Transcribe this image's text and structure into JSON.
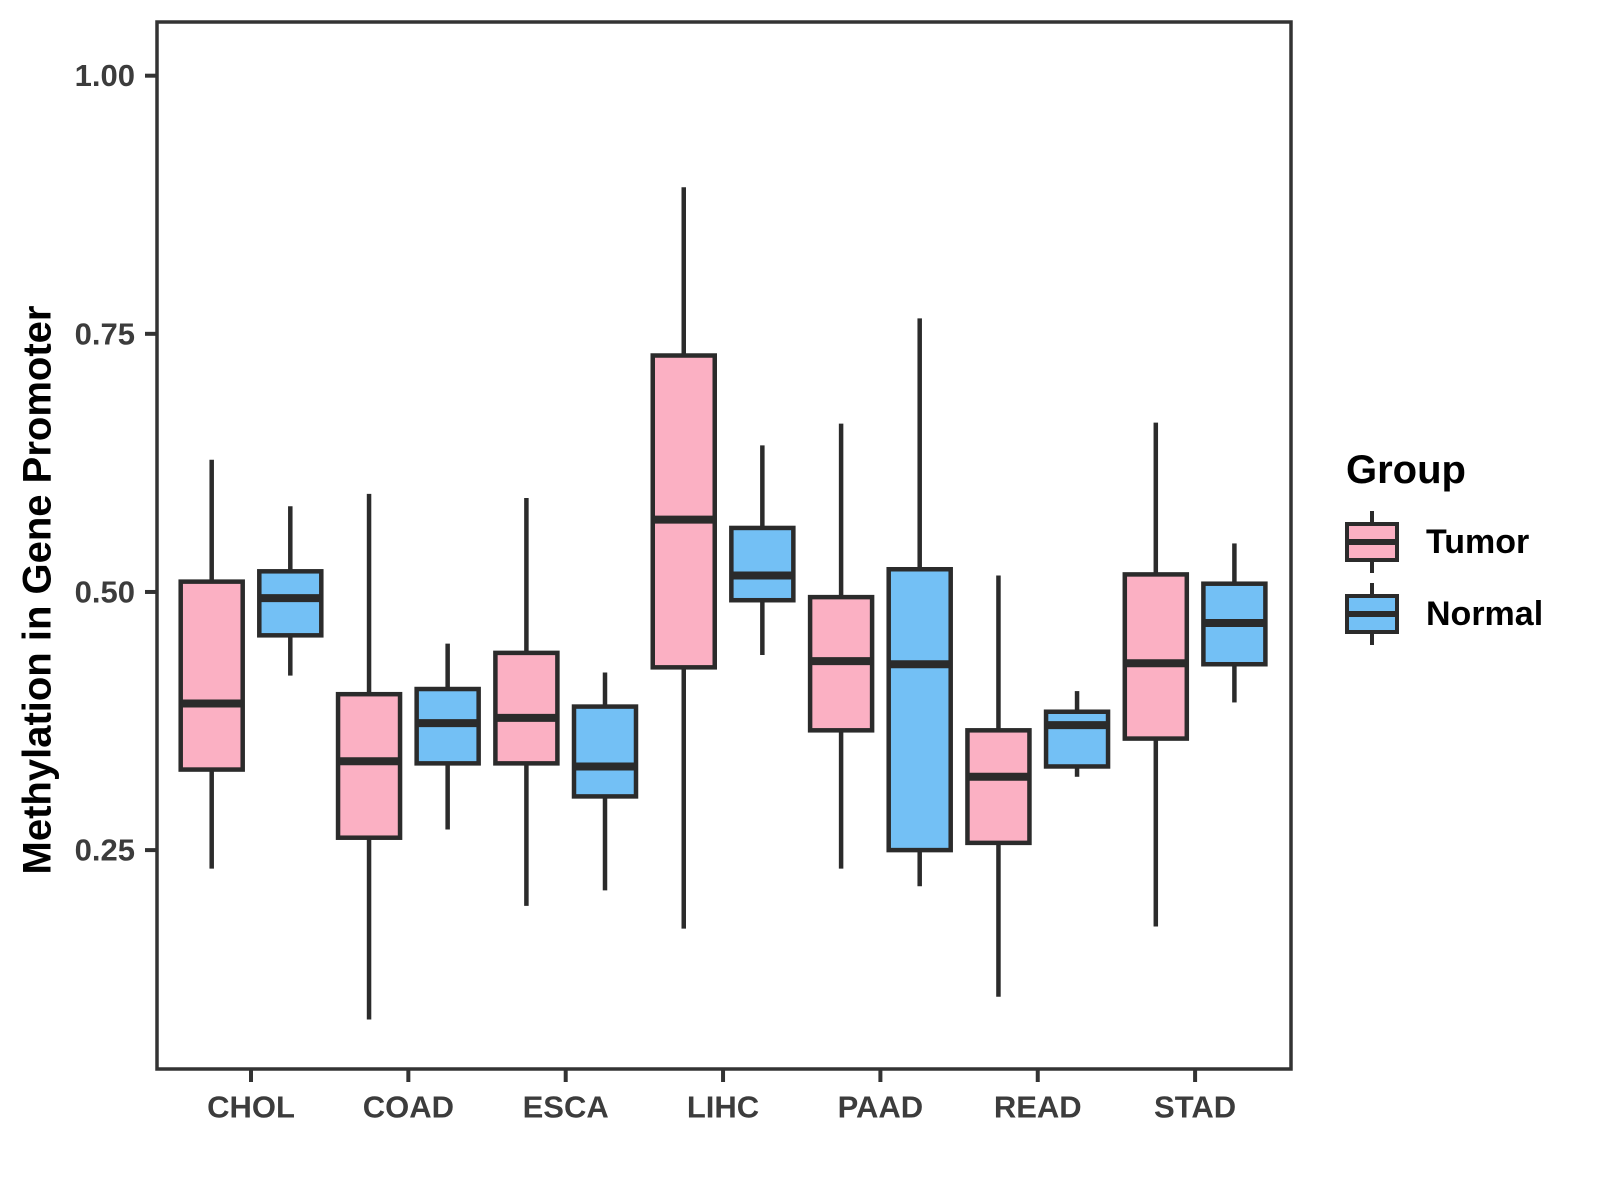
{
  "figure": {
    "background": "#ffffff"
  },
  "legend": {
    "title": "Group",
    "entries": [
      {
        "label": "Tumor",
        "color": "#FBB0C3"
      },
      {
        "label": "Normal",
        "color": "#73C0F5"
      }
    ]
  },
  "chart_data": {
    "type": "boxplot",
    "title": "",
    "xlabel": "",
    "ylabel": "Methylation in Gene Promoter",
    "categories": [
      "CHOL",
      "COAD",
      "ESCA",
      "LIHC",
      "PAAD",
      "READ",
      "STAD"
    ],
    "ylim": [
      0.038,
      1.052
    ],
    "yticks": [
      0.25,
      0.5,
      0.75,
      1.0
    ],
    "ytick_labels": [
      "0.25",
      "0.50",
      "0.75",
      "1.00"
    ],
    "grid": "off",
    "legend_position": "right",
    "colors": {
      "tumor_fill": "#FBB0C3",
      "normal_fill": "#73C0F5",
      "stroke": "#2B2B2B",
      "axis": "#333333",
      "tick_text": "#3C3C3C"
    },
    "series": [
      {
        "name": "Tumor",
        "fill": "#FBB0C3",
        "stats": [
          {
            "category": "CHOL",
            "min": 0.232,
            "q1": 0.328,
            "median": 0.392,
            "q3": 0.51,
            "max": 0.628
          },
          {
            "category": "COAD",
            "min": 0.086,
            "q1": 0.262,
            "median": 0.336,
            "q3": 0.401,
            "max": 0.595
          },
          {
            "category": "ESCA",
            "min": 0.196,
            "q1": 0.334,
            "median": 0.378,
            "q3": 0.441,
            "max": 0.591
          },
          {
            "category": "LIHC",
            "min": 0.174,
            "q1": 0.427,
            "median": 0.57,
            "q3": 0.729,
            "max": 0.892
          },
          {
            "category": "PAAD",
            "min": 0.232,
            "q1": 0.366,
            "median": 0.433,
            "q3": 0.495,
            "max": 0.663
          },
          {
            "category": "READ",
            "min": 0.108,
            "q1": 0.257,
            "median": 0.321,
            "q3": 0.366,
            "max": 0.516
          },
          {
            "category": "STAD",
            "min": 0.176,
            "q1": 0.358,
            "median": 0.431,
            "q3": 0.517,
            "max": 0.664
          }
        ]
      },
      {
        "name": "Normal",
        "fill": "#73C0F5",
        "stats": [
          {
            "category": "CHOL",
            "min": 0.419,
            "q1": 0.458,
            "median": 0.494,
            "q3": 0.52,
            "max": 0.583
          },
          {
            "category": "COAD",
            "min": 0.27,
            "q1": 0.334,
            "median": 0.373,
            "q3": 0.406,
            "max": 0.45
          },
          {
            "category": "ESCA",
            "min": 0.211,
            "q1": 0.302,
            "median": 0.331,
            "q3": 0.389,
            "max": 0.422
          },
          {
            "category": "LIHC",
            "min": 0.439,
            "q1": 0.492,
            "median": 0.516,
            "q3": 0.562,
            "max": 0.642
          },
          {
            "category": "PAAD",
            "min": 0.215,
            "q1": 0.25,
            "median": 0.43,
            "q3": 0.522,
            "max": 0.765
          },
          {
            "category": "READ",
            "min": 0.321,
            "q1": 0.331,
            "median": 0.371,
            "q3": 0.384,
            "max": 0.404
          },
          {
            "category": "STAD",
            "min": 0.393,
            "q1": 0.43,
            "median": 0.47,
            "q3": 0.508,
            "max": 0.547
          }
        ]
      }
    ]
  }
}
